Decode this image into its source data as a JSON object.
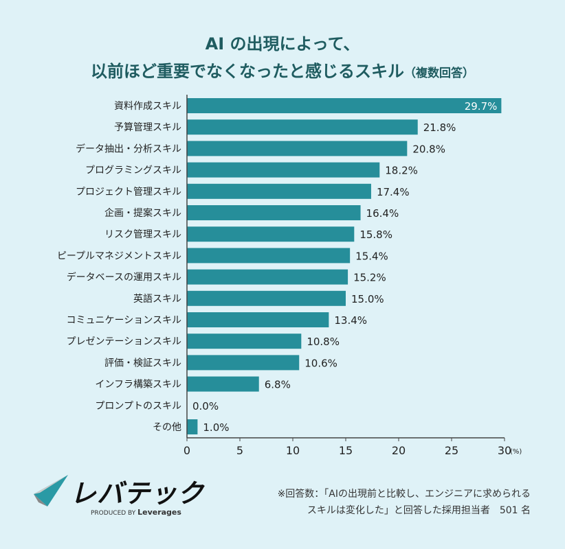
{
  "chart_data": {
    "type": "bar",
    "orientation": "horizontal",
    "title": "AI の出現によって、",
    "title_line2": "以前ほど重要でなくなったと感じるスキル",
    "subtitle": "（複数回答）",
    "categories": [
      "資料作成スキル",
      "予算管理スキル",
      "データ抽出・分析スキル",
      "プログラミングスキル",
      "プロジェクト管理スキル",
      "企画・提案スキル",
      "リスク管理スキル",
      "ピープルマネジメントスキル",
      "データベースの運用スキル",
      "英語スキル",
      "コミュニケーションスキル",
      "プレゼンテーションスキル",
      "評価・検証スキル",
      "インフラ構築スキル",
      "プロンプトのスキル",
      "その他"
    ],
    "values": [
      29.7,
      21.8,
      20.8,
      18.2,
      17.4,
      16.4,
      15.8,
      15.4,
      15.2,
      15.0,
      13.4,
      10.8,
      10.6,
      6.8,
      0.0,
      1.0
    ],
    "data_labels": [
      "29.7%",
      "21.8%",
      "20.8%",
      "18.2%",
      "17.4%",
      "16.4%",
      "15.8%",
      "15.4%",
      "15.2%",
      "15.0%",
      "13.4%",
      "10.8%",
      "10.6%",
      "6.8%",
      "0.0%",
      "1.0%"
    ],
    "xlim": [
      0,
      30
    ],
    "xticks": [
      "0",
      "5",
      "10",
      "15",
      "20",
      "25",
      "30"
    ],
    "xunit": "(%)",
    "grid": false,
    "bar_color": "#268e9a",
    "title_color": "#1f5c60"
  },
  "footer": {
    "note_line1": "※回答数：「AIの出現前と比較し、エンジニアに求められる",
    "note_line2": "スキルは変化した」と回答した採用担当者　501 名",
    "logo_text": "レバテック",
    "produced_by": "PRODUCED BY",
    "produced_by_brand": "Leverages"
  }
}
